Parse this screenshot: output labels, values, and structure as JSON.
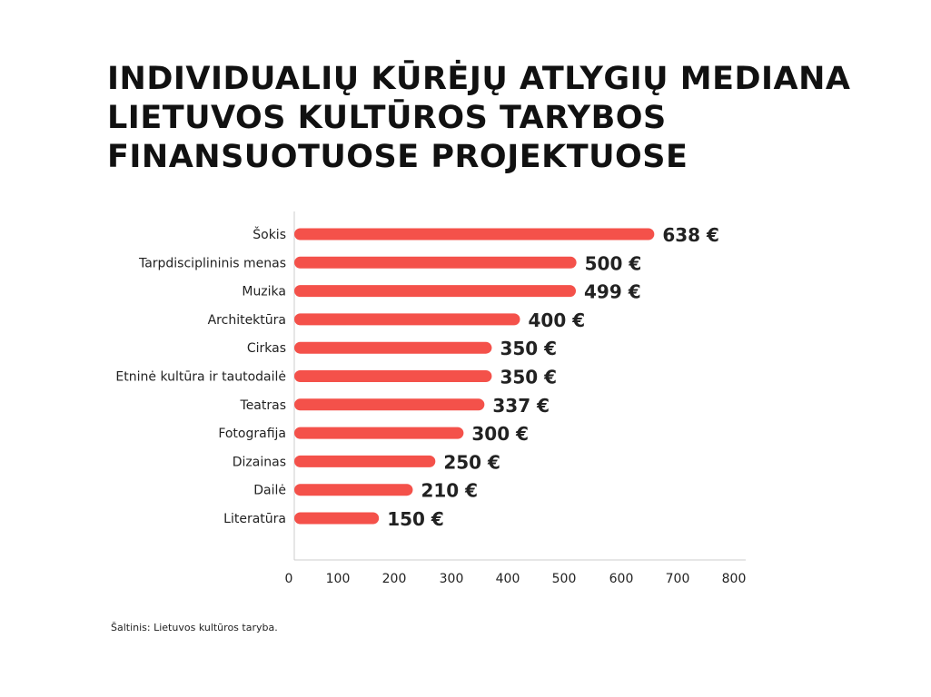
{
  "title_lines": [
    "INDIVIDUALIŲ KŪRĖJŲ ATLYGIŲ MEDIANA",
    "LIETUVOS KULTŪROS TARYBOS",
    "FINANSUOTUOSE PROJEKTUOSE"
  ],
  "source": "Šaltinis: Lietuvos kultūros taryba.",
  "colors": {
    "bar": "#f4514a",
    "axis": "#cccccc",
    "text": "#222222"
  },
  "chart_data": {
    "type": "bar",
    "orientation": "horizontal",
    "categories": [
      "Šokis",
      "Tarpdisciplininis menas",
      "Muzika",
      "Architektūra",
      "Cirkas",
      "Etninė kultūra ir tautodailė",
      "Teatras",
      "Fotografija",
      "Dizainas",
      "Dailė",
      "Literatūra"
    ],
    "values": [
      638,
      500,
      499,
      400,
      350,
      350,
      337,
      300,
      250,
      210,
      150
    ],
    "value_labels": [
      "638 €",
      "500 €",
      "499 €",
      "400 €",
      "350 €",
      "350 €",
      "337 €",
      "300 €",
      "250 €",
      "210 €",
      "150 €"
    ],
    "xlim": [
      0,
      800
    ],
    "x_ticks": [
      "0",
      "100",
      "200",
      "300",
      "400",
      "500",
      "600",
      "700",
      "800"
    ],
    "grid": false
  }
}
